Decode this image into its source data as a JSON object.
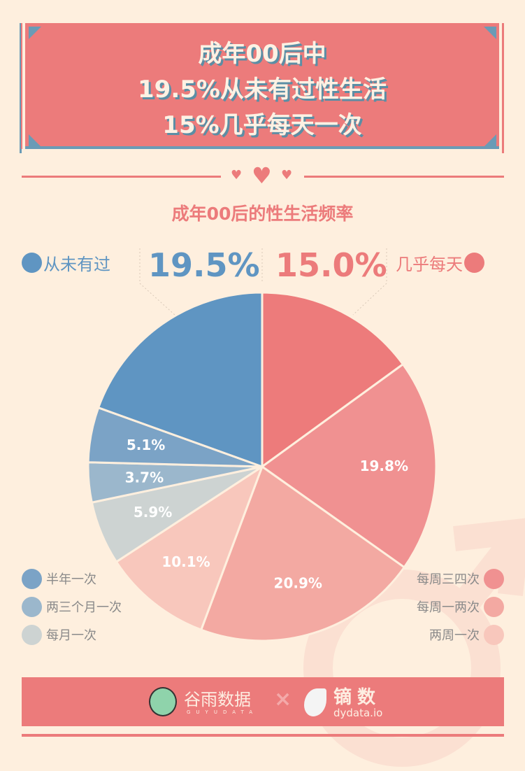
{
  "header": {
    "lines": [
      "成年00后中",
      "19.5%从未有过性生活",
      "15%几乎每天一次"
    ]
  },
  "subtitle": "成年00后的性生活频率",
  "callouts": {
    "left": {
      "label": "从未有过",
      "value": "19.5%",
      "color": "#5f95c2"
    },
    "right": {
      "label": "几乎每天",
      "value": "15.0%",
      "color": "#ec7b7b"
    }
  },
  "chart_data": {
    "type": "pie",
    "title": "成年00后的性生活频率",
    "start": "top, clockwise",
    "slices": [
      {
        "name": "几乎每天",
        "value": 15.0,
        "label": "",
        "color": "#ed7b7b"
      },
      {
        "name": "每周三四次",
        "value": 19.8,
        "label": "19.8%",
        "color": "#f09191"
      },
      {
        "name": "每周一两次",
        "value": 20.9,
        "label": "20.9%",
        "color": "#f3a9a2"
      },
      {
        "name": "两周一次",
        "value": 10.1,
        "label": "10.1%",
        "color": "#f8c7bc"
      },
      {
        "name": "每月一次",
        "value": 5.9,
        "label": "5.9%",
        "color": "#cdd3d2"
      },
      {
        "name": "两三个月一次",
        "value": 3.7,
        "label": "3.7%",
        "color": "#9bb7cc"
      },
      {
        "name": "半年一次",
        "value": 5.1,
        "label": "5.1%",
        "color": "#7ba3c6"
      },
      {
        "name": "从未有过",
        "value": 19.5,
        "label": "",
        "color": "#5f95c2"
      }
    ]
  },
  "legend": {
    "left": [
      {
        "label": "半年一次",
        "color": "#7ba3c6"
      },
      {
        "label": "两三个月一次",
        "color": "#9bb7cc"
      },
      {
        "label": "每月一次",
        "color": "#cdd3d2"
      }
    ],
    "right": [
      {
        "label": "每周三四次",
        "color": "#f09191"
      },
      {
        "label": "每周一两次",
        "color": "#f3a9a2"
      },
      {
        "label": "两周一次",
        "color": "#f8c7bc"
      }
    ]
  },
  "footer": {
    "brand1": "谷雨数据",
    "brand1_sub": "GUYUDATA",
    "separator": "×",
    "brand2": "镝数",
    "brand2_sub": "dydata.io"
  }
}
